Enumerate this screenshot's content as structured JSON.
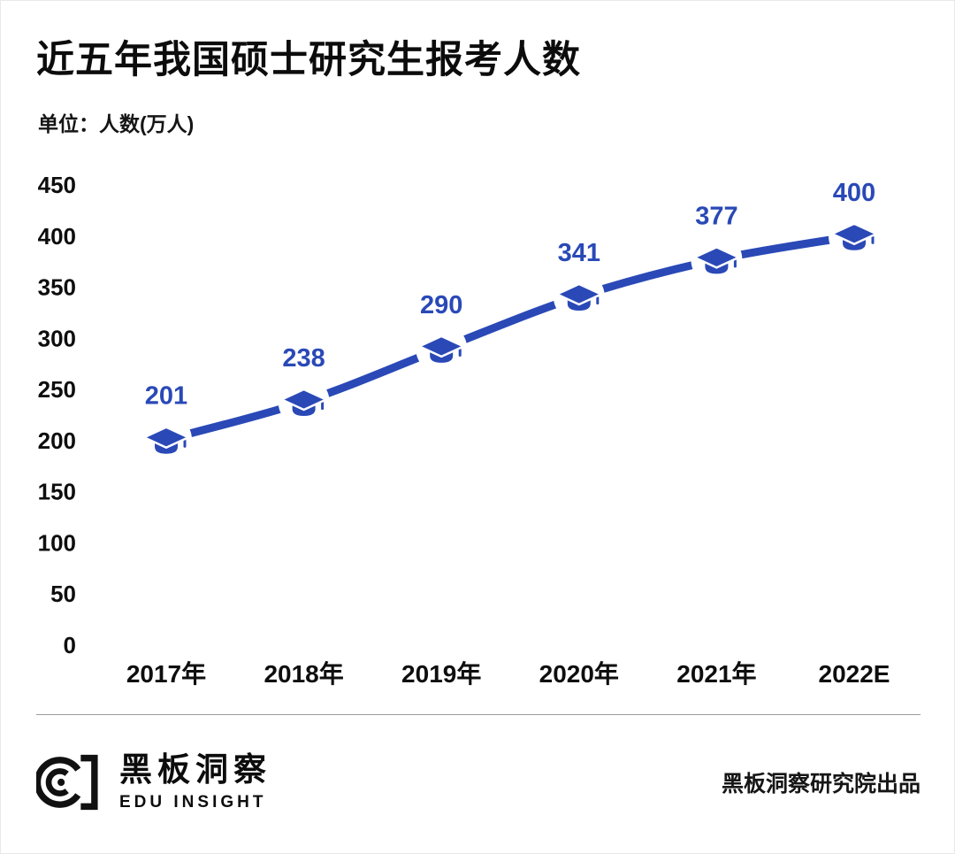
{
  "header": {
    "title": "近五年我国硕士研究生报考人数",
    "unit_label": "单位：人数(万人)"
  },
  "chart_data": {
    "type": "line",
    "categories": [
      "2017年",
      "2018年",
      "2019年",
      "2020年",
      "2021年",
      "2022E"
    ],
    "values": [
      201,
      238,
      290,
      341,
      377,
      400
    ],
    "title": "近五年我国硕士研究生报考人数",
    "xlabel": "",
    "ylabel": "人数(万人)",
    "ylim": [
      0,
      450
    ],
    "yticks": [
      0,
      50,
      100,
      150,
      200,
      250,
      300,
      350,
      400,
      450
    ],
    "grid": false,
    "legend": "none",
    "marker": "graduation-cap-icon",
    "line_color": "#2a49b7",
    "label_color": "#2a49b7"
  },
  "footer": {
    "brand": "黑板洞察",
    "brand_sub": "EDU INSIGHT",
    "credit": "黑板洞察研究院出品"
  },
  "colors": {
    "accent": "#2a49b7",
    "text": "#0c0c0c",
    "divider": "#9c9c9c"
  }
}
